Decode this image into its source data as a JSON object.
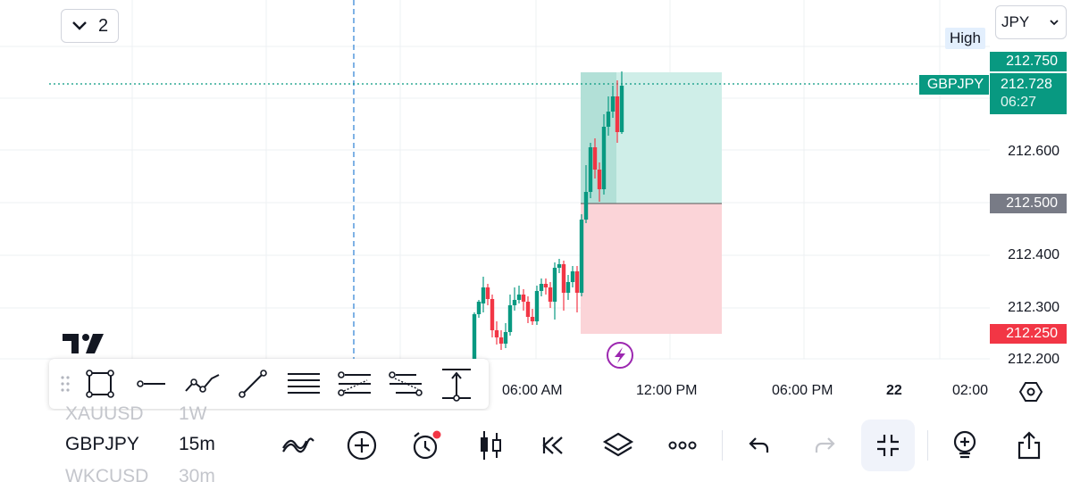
{
  "header": {
    "layout_count": "2",
    "currency": "JPY",
    "high_label": "High"
  },
  "price_axis": {
    "labels": [
      "212.600",
      "212.400",
      "212.300",
      "212.200"
    ],
    "high_price": "212.750",
    "current_symbol": "GBPJPY",
    "current_price": "212.728",
    "countdown": "06:27",
    "entry_price": "212.500",
    "stop_price": "212.250"
  },
  "time_axis": {
    "labels": [
      "06:00 AM",
      "12:00 PM",
      "06:00 PM",
      "22",
      "02:00"
    ]
  },
  "colors": {
    "up": "#089981",
    "down": "#f23645",
    "profit_zone": "#cfeee8",
    "loss_zone": "#fbd4d8",
    "entry_tag": "#787b86",
    "accent_purple": "#9c27b0"
  },
  "drawing_tools": [
    "drag-handle-icon",
    "rectangle-icon",
    "horizontal-line-icon",
    "path-icon",
    "trend-line-icon",
    "horizontal-lines-icon",
    "parallel-channel-icon",
    "fib-retracement-icon",
    "measure-icon"
  ],
  "watchlist": {
    "items": [
      {
        "symbol": "XAUUSD",
        "interval": "1W"
      },
      {
        "symbol": "GBPJPY",
        "interval": "15m"
      },
      {
        "symbol": "WKCUSD",
        "interval": "30m"
      }
    ]
  },
  "chart_data": {
    "type": "candlestick",
    "symbol": "GBPJPY",
    "interval": "15m",
    "ylim": [
      212.17,
      212.8
    ],
    "position": {
      "entry": 212.5,
      "target": 212.75,
      "stop": 212.25
    }
  }
}
